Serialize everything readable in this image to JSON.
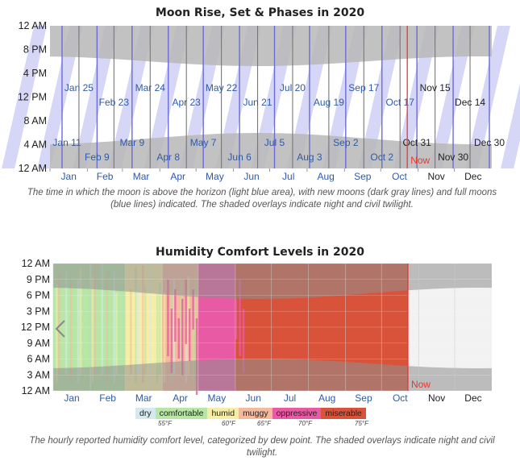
{
  "moon": {
    "title": "Moon Rise, Set & Phases in 2020",
    "caption": "The time in which the moon is above the horizon (light blue area), with new moons (dark gray lines) and full moons (blue lines) indicated. The shaded overlays indicate night and civil twilight.",
    "now_label": "Now"
  },
  "humidity": {
    "title": "Humidity Comfort Levels in 2020",
    "caption": "The hourly reported humidity comfort level, categorized by dew point. The shaded overlays indicate night and civil twilight.",
    "now_label": "Now",
    "legend": [
      {
        "label": "dry",
        "color": "#d6e9ee"
      },
      {
        "label": "comfortable",
        "color": "#b8e6a6"
      },
      {
        "label": "humid",
        "color": "#f6eea6"
      },
      {
        "label": "muggy",
        "color": "#f5b99c"
      },
      {
        "label": "oppressive",
        "color": "#e95aa4"
      },
      {
        "label": "miserable",
        "color": "#d9533b"
      }
    ],
    "thresholds": [
      "55°F",
      "60°F",
      "65°F",
      "70°F",
      "75°F"
    ]
  },
  "chart_data": [
    {
      "type": "area",
      "title": "Moon Rise, Set & Phases in 2020",
      "x_ticks": [
        "Jan",
        "Feb",
        "Mar",
        "Apr",
        "May",
        "Jun",
        "Jul",
        "Aug",
        "Sep",
        "Oct",
        "Nov",
        "Dec"
      ],
      "y_ticks": [
        "12 AM",
        "8 PM",
        "4 PM",
        "12 PM",
        "8 AM",
        "4 AM",
        "12 AM"
      ],
      "now": "Oct 23",
      "full_moons": [
        "Jan 11",
        "Feb 9",
        "Mar 9",
        "Apr 8",
        "May 7",
        "Jun 6",
        "Jul 5",
        "Aug 3",
        "Sep 2",
        "Oct 2",
        "Oct 31",
        "Nov 30",
        "Dec 30"
      ],
      "new_moons": [
        "Jan 25",
        "Feb 23",
        "Mar 24",
        "Apr 23",
        "May 22",
        "Jun 21",
        "Jul 20",
        "Aug 19",
        "Sep 17",
        "Oct 17",
        "Nov 15",
        "Dec 14"
      ],
      "colors": {
        "moon_up": "#cfd0f5",
        "full_moon_line": "#6b6bd6",
        "new_moon_line": "#777777",
        "night": "#b7b7b7",
        "now_line": "#e53935"
      }
    },
    {
      "type": "heatmap",
      "title": "Humidity Comfort Levels in 2020",
      "x_ticks": [
        "Jan",
        "Feb",
        "Mar",
        "Apr",
        "May",
        "Jun",
        "Jul",
        "Aug",
        "Sep",
        "Oct",
        "Nov",
        "Dec"
      ],
      "y_ticks": [
        "12 AM",
        "9 PM",
        "6 PM",
        "3 PM",
        "12 PM",
        "9 AM",
        "6 AM",
        "3 AM",
        "12 AM"
      ],
      "categories": [
        "dry",
        "comfortable",
        "humid",
        "muggy",
        "oppressive",
        "miserable"
      ],
      "dew_point_thresholds_F": [
        55,
        60,
        65,
        70,
        75
      ],
      "now": "Oct 23",
      "dominant_category_by_month": {
        "Jan": "comfortable",
        "Feb": "comfortable",
        "Mar": "humid",
        "Apr": "muggy",
        "May": "oppressive",
        "Jun": "miserable",
        "Jul": "miserable",
        "Aug": "miserable",
        "Sep": "miserable",
        "Oct": "miserable"
      }
    }
  ]
}
